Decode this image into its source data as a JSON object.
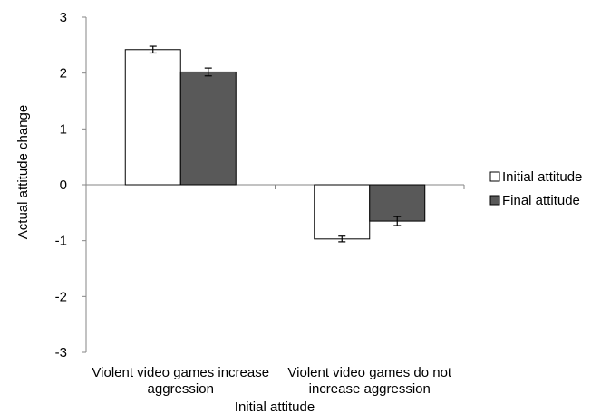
{
  "chart_data": {
    "type": "bar",
    "categories": [
      [
        "Violent video games increase",
        "aggression"
      ],
      [
        "Violent video games do not",
        "increase aggression"
      ]
    ],
    "series": [
      {
        "name": "Initial attitude",
        "values": [
          2.42,
          -0.97
        ],
        "errors": [
          0.06,
          0.05
        ],
        "color": "#ffffff"
      },
      {
        "name": "Final attitude",
        "values": [
          2.02,
          -0.65
        ],
        "errors": [
          0.07,
          0.08
        ],
        "color": "#595959"
      }
    ],
    "xlabel": "Initial attitude",
    "ylabel": "Actual attitude change",
    "ylim": [
      -3,
      3
    ],
    "yticks": [
      "3",
      "2",
      "1",
      "0",
      "-1",
      "-2",
      "-3"
    ],
    "ytick_values": [
      3,
      2,
      1,
      0,
      -1,
      -2,
      -3
    ],
    "grid": false,
    "legend": "right"
  }
}
